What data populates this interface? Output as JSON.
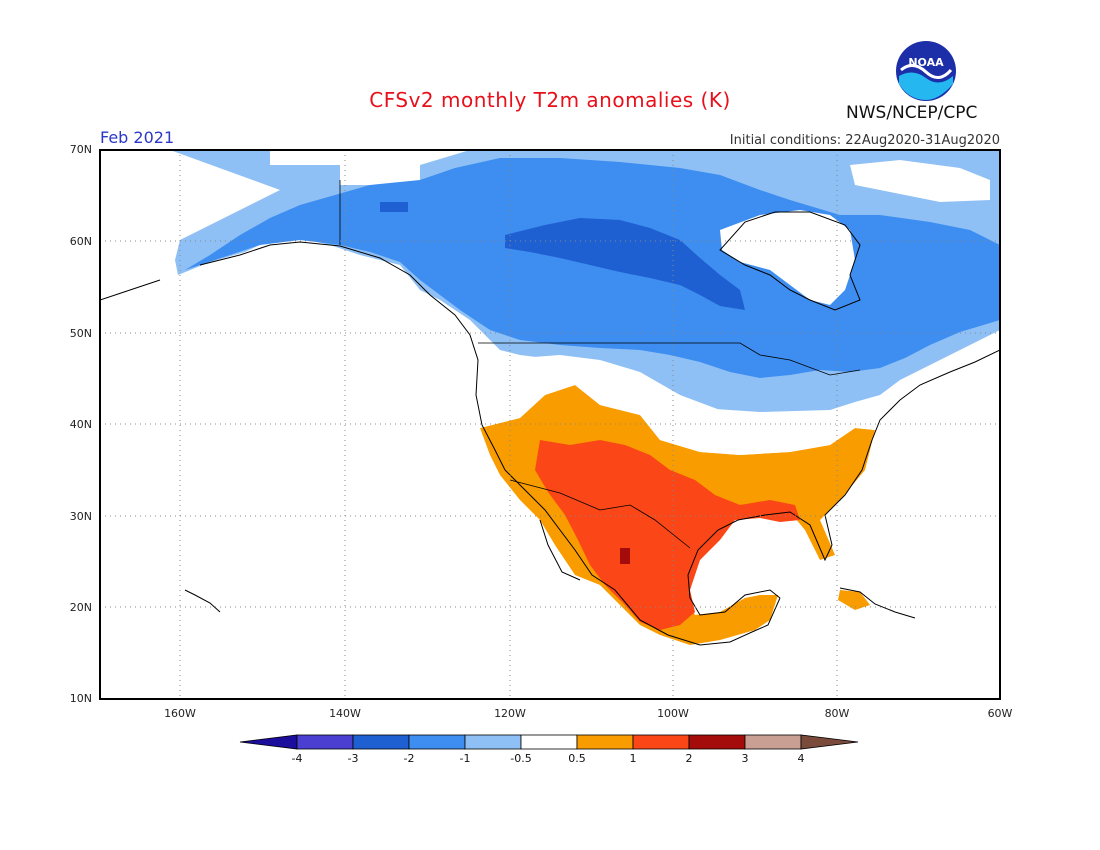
{
  "header": {
    "title": "CFSv2 monthly T2m anomalies (K)",
    "org": "NWS/NCEP/CPC",
    "logo_text": "NOAA",
    "period": "Feb 2021",
    "initial_conditions": "Initial conditions: 22Aug2020-31Aug2020"
  },
  "map": {
    "lat_labels": [
      "70N",
      "60N",
      "50N",
      "40N",
      "30N",
      "20N",
      "10N"
    ],
    "lon_labels": [
      "160W",
      "140W",
      "120W",
      "100W",
      "80W",
      "60W"
    ]
  },
  "colorbar": {
    "labels": [
      "-4",
      "-3",
      "-2",
      "-1",
      "-0.5",
      "0.5",
      "1",
      "2",
      "3",
      "4"
    ],
    "colors": [
      "#1c0e9c",
      "#4a3fd0",
      "#1e5fd1",
      "#3d8ef0",
      "#8ec0f5",
      "#ffffff",
      "#f99c00",
      "#fb4717",
      "#a40b0b",
      "#c89f92",
      "#7a4a3a"
    ]
  },
  "colors": {
    "title": "#e8101a",
    "period": "#2b37c7",
    "light_blue": "#8ec0f5",
    "blue": "#3d8ef0",
    "dark_blue": "#1e5fd1",
    "orange": "#f99c00",
    "red": "#fb4717",
    "dark_red": "#a40b0b"
  }
}
